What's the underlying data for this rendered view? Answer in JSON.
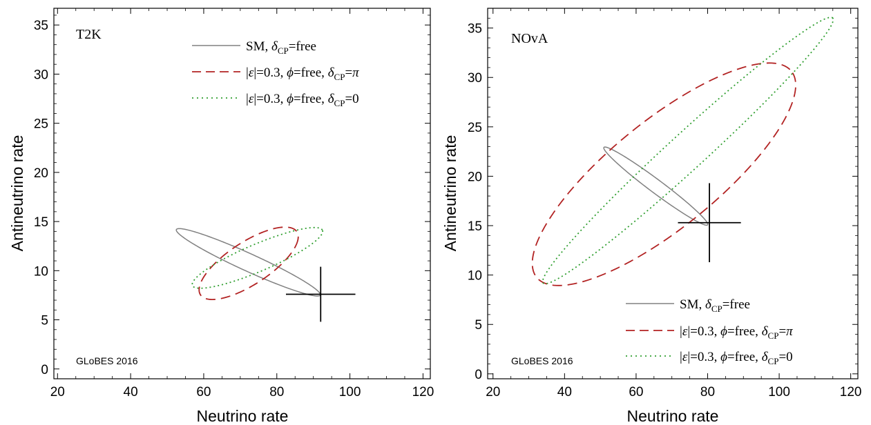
{
  "chart_data": [
    {
      "type": "line",
      "panel_label": "T2K",
      "watermark": "GLoBES 2016",
      "xlabel": "Neutrino rate",
      "ylabel": "Antineutrino rate",
      "xlim": [
        19,
        122
      ],
      "ylim": [
        -1,
        36.7
      ],
      "xticks": [
        20,
        40,
        60,
        80,
        100,
        120
      ],
      "yticks": [
        0,
        5,
        10,
        15,
        20,
        25,
        30,
        35
      ],
      "legend_position": "top-right",
      "cross": {
        "x": 92,
        "y": 7.6,
        "x_half": 9.5,
        "y_half": 2.8
      },
      "series": [
        {
          "legend": "SM, δCP=free",
          "color": "#808080",
          "style": "solid",
          "ellipse": {
            "cx": 72.2,
            "cy": 10.85,
            "rx_end": [
              52.5,
              14.1
            ],
            "ry_end": [
              72.9,
              9.75
            ]
          }
        },
        {
          "legend": "|ε|=0.3, φ=free, δCP=π",
          "color": "#b22222",
          "style": "dashed",
          "ellipse": {
            "cx": 72.3,
            "cy": 10.75,
            "rx_end": [
              85.8,
              13.2
            ],
            "ry_end": [
              71.0,
              8.0
            ]
          }
        },
        {
          "legend": "|ε|=0.3, φ=free, δCP=0",
          "color": "#2e9e2e",
          "style": "dotted",
          "ellipse": {
            "cx": 74.7,
            "cy": 11.3,
            "rx_end": [
              92.5,
              14.1
            ],
            "ry_end": [
              76.0,
              10.0
            ]
          }
        }
      ]
    },
    {
      "type": "line",
      "panel_label": "NOvA",
      "watermark": "GLoBES 2016",
      "xlabel": "Neutrino rate",
      "ylabel": "Antineutrino rate",
      "xlim": [
        18.5,
        122
      ],
      "ylim": [
        -0.5,
        37
      ],
      "xticks": [
        20,
        40,
        60,
        80,
        100,
        120
      ],
      "yticks": [
        0,
        5,
        10,
        15,
        20,
        25,
        30,
        35
      ],
      "legend_position": "bottom-right",
      "cross": {
        "x": 80.5,
        "y": 15.3,
        "x_half": 8.8,
        "y_half": 4.0
      },
      "series": [
        {
          "legend": "SM, δCP=free",
          "color": "#808080",
          "style": "solid",
          "ellipse": {
            "cx": 65.5,
            "cy": 19.0,
            "rx_end": [
              51.0,
              22.8
            ],
            "ry_end": [
              66.5,
              17.9
            ]
          }
        },
        {
          "legend": "|ε|=0.3, φ=free, δCP=π",
          "color": "#b22222",
          "style": "dashed",
          "ellipse": {
            "cx": 67.8,
            "cy": 20.2,
            "rx_end": [
              103.0,
              30.8
            ],
            "ry_end": [
              57.0,
              24.0
            ]
          }
        },
        {
          "legend": "|ε|=0.3, φ=free, δCP=0",
          "color": "#2e9e2e",
          "style": "dotted",
          "ellipse": {
            "cx": 74.5,
            "cy": 22.6,
            "rx_end": [
              115.0,
              36.0
            ],
            "ry_end": [
              71.5,
              24.1
            ]
          }
        }
      ]
    }
  ]
}
